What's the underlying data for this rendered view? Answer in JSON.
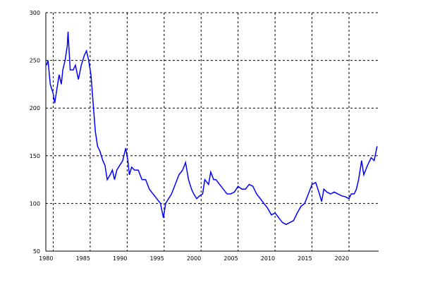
{
  "chart_data": {
    "type": "line",
    "x": [
      1979.1,
      1979.3,
      1979.6,
      1980.0,
      1980.2,
      1980.5,
      1980.8,
      1981.1,
      1981.3,
      1981.6,
      1981.9,
      1982.0,
      1982.3,
      1982.7,
      1983.0,
      1983.4,
      1983.8,
      1984.2,
      1984.5,
      1984.8,
      1985.1,
      1985.4,
      1985.7,
      1986.0,
      1986.3,
      1986.7,
      1987.0,
      1987.3,
      1987.7,
      1988.0,
      1988.3,
      1988.6,
      1989.0,
      1989.4,
      1989.8,
      1990.1,
      1990.3,
      1990.6,
      1991.0,
      1991.5,
      1992.0,
      1992.5,
      1993.0,
      1993.5,
      1994.0,
      1994.5,
      1994.9,
      1995.2,
      1995.6,
      1996.0,
      1996.5,
      1997.0,
      1997.5,
      1997.9,
      1998.3,
      1998.7,
      1999.0,
      1999.4,
      1999.8,
      2000.2,
      2000.5,
      2001.0,
      2001.3,
      2001.7,
      2002.0,
      2002.5,
      2003.0,
      2003.5,
      2004.0,
      2004.5,
      2005.0,
      2005.5,
      2006.0,
      2006.5,
      2007.0,
      2007.5,
      2008.0,
      2008.5,
      2009.0,
      2009.5,
      2010.0,
      2010.5,
      2011.0,
      2011.5,
      2012.0,
      2012.5,
      2013.0,
      2013.5,
      2014.0,
      2014.5,
      2015.0,
      2015.5,
      2016.0,
      2016.3,
      2016.6,
      2017.0,
      2017.5,
      2018.0,
      2018.5,
      2019.0,
      2019.5,
      2020.0,
      2020.3,
      2020.7,
      2021.0,
      2021.3,
      2021.7,
      2022.0,
      2022.5,
      2023.0,
      2023.4,
      2023.8
    ],
    "series": [
      {
        "color": "#0000ff",
        "values": [
          245,
          250,
          225,
          215,
          205,
          220,
          235,
          225,
          240,
          250,
          265,
          280,
          240,
          240,
          245,
          230,
          245,
          255,
          260,
          250,
          235,
          205,
          175,
          160,
          155,
          145,
          140,
          125,
          130,
          135,
          125,
          135,
          140,
          145,
          158,
          145,
          130,
          138,
          135,
          135,
          125,
          125,
          115,
          110,
          105,
          100,
          85,
          100,
          105,
          110,
          120,
          130,
          135,
          143,
          125,
          115,
          110,
          105,
          108,
          110,
          125,
          120,
          133,
          125,
          125,
          120,
          115,
          110,
          110,
          112,
          118,
          115,
          115,
          120,
          118,
          110,
          105,
          100,
          95,
          88,
          90,
          85,
          80,
          78,
          80,
          82,
          90,
          97,
          100,
          110,
          120,
          122,
          110,
          102,
          115,
          112,
          110,
          112,
          110,
          108,
          107,
          105,
          110,
          110,
          115,
          125,
          145,
          130,
          140,
          148,
          145,
          160
        ]
      }
    ],
    "xlim": [
      1979,
      2024
    ],
    "ylim": [
      50,
      300
    ],
    "xticks": [
      1980,
      1985,
      1990,
      1995,
      2000,
      2005,
      2010,
      2015,
      2020
    ],
    "yticks": [
      50,
      100,
      150,
      200,
      250,
      300
    ],
    "grid": true
  }
}
